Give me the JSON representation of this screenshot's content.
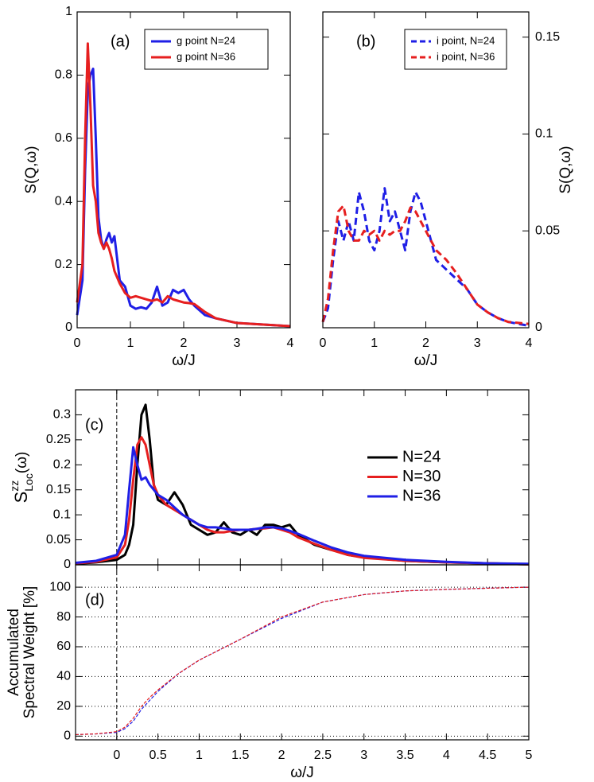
{
  "chart_data": [
    {
      "type": "line",
      "annotation": "(a)",
      "xlabel": "ω/J",
      "ylabel": "S(Q,ω)",
      "xlim": [
        0,
        4
      ],
      "ylim": [
        0,
        1
      ],
      "xticks": [
        0,
        1,
        2,
        3,
        4
      ],
      "yticks": [
        0,
        0.2,
        0.4,
        0.6,
        0.8,
        1
      ],
      "legend": "upper right",
      "x": [
        0,
        0.1,
        0.15,
        0.2,
        0.25,
        0.3,
        0.35,
        0.4,
        0.45,
        0.5,
        0.55,
        0.6,
        0.65,
        0.7,
        0.8,
        0.9,
        1.0,
        1.1,
        1.2,
        1.3,
        1.4,
        1.5,
        1.6,
        1.7,
        1.8,
        1.9,
        2.0,
        2.1,
        2.2,
        2.4,
        2.6,
        3.0,
        3.5,
        4.0
      ],
      "series": [
        {
          "name": "g point N=24",
          "color": "#1f1fe6",
          "values": [
            0.04,
            0.15,
            0.5,
            0.75,
            0.8,
            0.82,
            0.6,
            0.35,
            0.28,
            0.25,
            0.28,
            0.3,
            0.27,
            0.29,
            0.15,
            0.13,
            0.07,
            0.06,
            0.065,
            0.06,
            0.08,
            0.13,
            0.07,
            0.08,
            0.12,
            0.11,
            0.12,
            0.09,
            0.07,
            0.04,
            0.03,
            0.015,
            0.01,
            0.005
          ]
        },
        {
          "name": "g point N=36",
          "color": "#e61f1f",
          "values": [
            0.08,
            0.2,
            0.6,
            0.9,
            0.7,
            0.45,
            0.4,
            0.3,
            0.27,
            0.25,
            0.27,
            0.25,
            0.22,
            0.18,
            0.14,
            0.11,
            0.095,
            0.1,
            0.095,
            0.09,
            0.085,
            0.09,
            0.08,
            0.1,
            0.09,
            0.085,
            0.08,
            0.078,
            0.075,
            0.05,
            0.03,
            0.015,
            0.01,
            0.005
          ]
        }
      ]
    },
    {
      "type": "line",
      "annotation": "(b)",
      "xlabel": "ω/J",
      "ylabel": "S(Q,ω)",
      "yaxis": "right",
      "dashed": true,
      "xlim": [
        0,
        4
      ],
      "ylim": [
        0,
        0.163
      ],
      "xticks": [
        0,
        1,
        2,
        3,
        4
      ],
      "yticks": [
        0,
        0.05,
        0.1,
        0.15
      ],
      "legend": "upper right",
      "x": [
        0,
        0.1,
        0.2,
        0.3,
        0.4,
        0.5,
        0.6,
        0.7,
        0.8,
        0.9,
        1.0,
        1.1,
        1.2,
        1.3,
        1.4,
        1.5,
        1.6,
        1.7,
        1.8,
        1.9,
        2.0,
        2.1,
        2.2,
        2.4,
        2.6,
        2.8,
        3.0,
        3.2,
        3.4,
        3.6,
        4.0
      ],
      "series": [
        {
          "name": "i point, N=24",
          "color": "#1f1fe6",
          "values": [
            0.003,
            0.01,
            0.035,
            0.055,
            0.045,
            0.055,
            0.045,
            0.07,
            0.06,
            0.045,
            0.04,
            0.05,
            0.072,
            0.055,
            0.06,
            0.05,
            0.04,
            0.06,
            0.07,
            0.065,
            0.055,
            0.045,
            0.035,
            0.03,
            0.025,
            0.02,
            0.012,
            0.008,
            0.005,
            0.003,
            0.001
          ]
        },
        {
          "name": "i point, N=36",
          "color": "#e61f1f",
          "values": [
            0.003,
            0.015,
            0.04,
            0.06,
            0.063,
            0.05,
            0.045,
            0.045,
            0.05,
            0.048,
            0.05,
            0.045,
            0.05,
            0.048,
            0.05,
            0.05,
            0.055,
            0.062,
            0.06,
            0.055,
            0.05,
            0.045,
            0.04,
            0.035,
            0.028,
            0.02,
            0.012,
            0.008,
            0.005,
            0.003,
            0.002
          ]
        }
      ]
    },
    {
      "type": "line",
      "annotation": "(c)",
      "ylabel": {
        "base": "S",
        "sup": "zz",
        "sub": "Loc",
        "tail": "(ω)"
      },
      "xlim": [
        -0.5,
        5
      ],
      "ylim": [
        0,
        0.35
      ],
      "yticks": [
        0,
        0.05,
        0.1,
        0.15,
        0.2,
        0.25,
        0.3
      ],
      "vline": 0,
      "legend": "right",
      "x": [
        -0.5,
        -0.25,
        0,
        0.1,
        0.15,
        0.2,
        0.25,
        0.3,
        0.35,
        0.4,
        0.45,
        0.5,
        0.6,
        0.7,
        0.8,
        0.9,
        1.0,
        1.1,
        1.2,
        1.3,
        1.4,
        1.5,
        1.6,
        1.7,
        1.8,
        1.9,
        2.0,
        2.1,
        2.2,
        2.4,
        2.6,
        2.7,
        2.8,
        3.0,
        3.5,
        4.0,
        4.5,
        5.0
      ],
      "series": [
        {
          "name": "N=24",
          "color": "#000000",
          "values": [
            0.002,
            0.005,
            0.01,
            0.02,
            0.04,
            0.08,
            0.2,
            0.3,
            0.32,
            0.25,
            0.16,
            0.13,
            0.12,
            0.145,
            0.12,
            0.08,
            0.07,
            0.06,
            0.065,
            0.085,
            0.065,
            0.06,
            0.07,
            0.06,
            0.08,
            0.08,
            0.075,
            0.08,
            0.06,
            0.04,
            0.03,
            0.03,
            0.02,
            0.015,
            0.008,
            0.005,
            0.003,
            0.001
          ]
        },
        {
          "name": "N=30",
          "color": "#e61f1f",
          "values": [
            0.003,
            0.006,
            0.015,
            0.04,
            0.09,
            0.17,
            0.24,
            0.255,
            0.24,
            0.2,
            0.16,
            0.14,
            0.12,
            0.11,
            0.1,
            0.09,
            0.08,
            0.07,
            0.065,
            0.065,
            0.068,
            0.07,
            0.07,
            0.072,
            0.073,
            0.075,
            0.07,
            0.065,
            0.055,
            0.042,
            0.03,
            0.025,
            0.02,
            0.014,
            0.008,
            0.005,
            0.003,
            0.001
          ]
        },
        {
          "name": "N=36",
          "color": "#1f1fe6",
          "values": [
            0.004,
            0.008,
            0.02,
            0.06,
            0.15,
            0.235,
            0.2,
            0.17,
            0.175,
            0.16,
            0.15,
            0.14,
            0.13,
            0.115,
            0.1,
            0.09,
            0.08,
            0.075,
            0.075,
            0.073,
            0.07,
            0.07,
            0.07,
            0.072,
            0.075,
            0.075,
            0.073,
            0.068,
            0.062,
            0.048,
            0.035,
            0.03,
            0.025,
            0.018,
            0.01,
            0.006,
            0.003,
            0.002
          ]
        }
      ]
    },
    {
      "type": "line",
      "annotation": "(d)",
      "xlabel": "ω/J",
      "ylabel": [
        "Accumulated",
        "Spectral Weight [%]"
      ],
      "dashed": true,
      "grid": true,
      "xlim": [
        -0.5,
        5
      ],
      "ylim": [
        -2.5,
        115
      ],
      "xticks": [
        0,
        0.5,
        1,
        1.5,
        2,
        2.5,
        3,
        3.5,
        4,
        4.5,
        5
      ],
      "yticks": [
        0,
        20,
        40,
        60,
        80,
        100
      ],
      "vline": 0,
      "x": [
        -0.5,
        -0.25,
        0,
        0.1,
        0.2,
        0.3,
        0.4,
        0.5,
        0.75,
        1.0,
        1.5,
        2.0,
        2.5,
        3.0,
        3.5,
        4.0,
        4.5,
        5.0
      ],
      "series": [
        {
          "color": "#1f1fe6",
          "values": [
            1,
            1.5,
            2.5,
            5,
            10,
            18,
            24,
            30,
            42,
            51,
            65,
            79,
            90,
            95,
            97.5,
            98.5,
            99.3,
            100
          ]
        },
        {
          "color": "#e61f1f",
          "values": [
            1,
            1.5,
            3,
            6,
            12,
            20,
            26,
            31,
            42,
            51,
            65,
            80,
            90,
            95,
            97.5,
            98.5,
            99.3,
            100
          ]
        }
      ]
    }
  ]
}
